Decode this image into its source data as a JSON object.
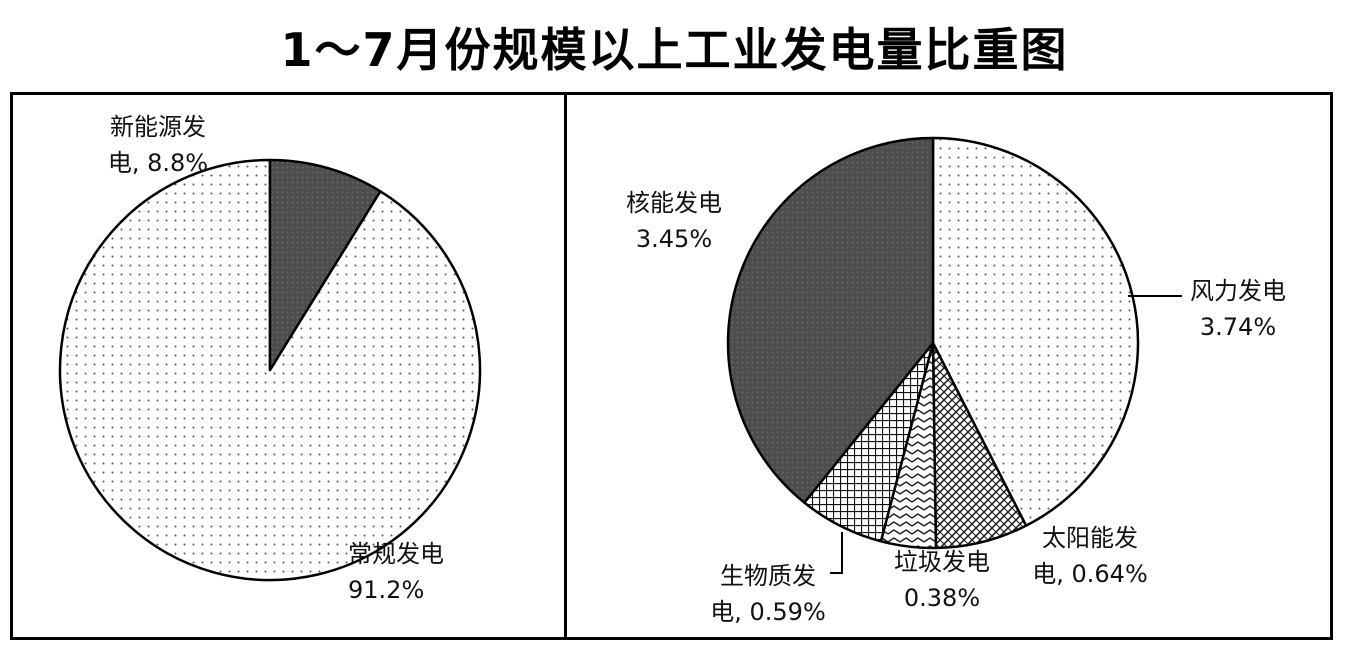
{
  "title": "1～7月份规模以上工业发电量比重图",
  "colors": {
    "dark": "#555555",
    "outline": "#000000",
    "background": "#ffffff"
  },
  "chart_data": [
    {
      "type": "pie",
      "title": "",
      "slices": [
        {
          "label_lines": [
            "常规发电",
            "91.2%"
          ],
          "value": 91.2,
          "pattern": "dots"
        },
        {
          "label_lines": [
            "新能源发",
            "电, 8.8%"
          ],
          "value": 8.8,
          "pattern": "dark"
        }
      ]
    },
    {
      "type": "pie",
      "title": "",
      "slices": [
        {
          "label_lines": [
            "风力发电",
            "3.74%"
          ],
          "value": 3.74,
          "pattern": "dots"
        },
        {
          "label_lines": [
            "太阳能发",
            "电, 0.64%"
          ],
          "value": 0.64,
          "pattern": "diag-cross"
        },
        {
          "label_lines": [
            "垃圾发电",
            "0.38%"
          ],
          "value": 0.38,
          "pattern": "zigzag"
        },
        {
          "label_lines": [
            "生物质发",
            "电, 0.59%"
          ],
          "value": 0.59,
          "pattern": "grid"
        },
        {
          "label_lines": [
            "核能发电",
            "3.45%"
          ],
          "value": 3.45,
          "pattern": "dark"
        }
      ]
    }
  ]
}
